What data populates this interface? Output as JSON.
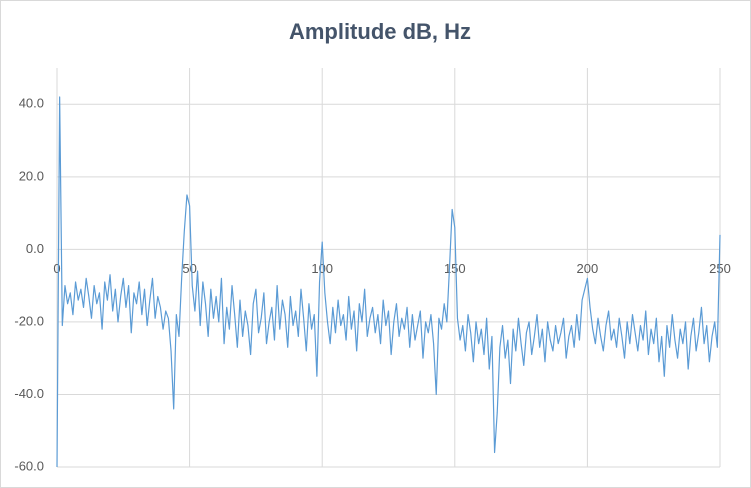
{
  "chart_data": {
    "type": "line",
    "title": "Amplitude dB, Hz",
    "x": [
      0,
      1,
      2,
      3,
      4,
      5,
      6,
      7,
      8,
      9,
      10,
      11,
      12,
      13,
      14,
      15,
      16,
      17,
      18,
      19,
      20,
      21,
      22,
      23,
      24,
      25,
      26,
      27,
      28,
      29,
      30,
      31,
      32,
      33,
      34,
      35,
      36,
      37,
      38,
      39,
      40,
      41,
      42,
      43,
      44,
      45,
      46,
      47,
      48,
      49,
      50,
      51,
      52,
      53,
      54,
      55,
      56,
      57,
      58,
      59,
      60,
      61,
      62,
      63,
      64,
      65,
      66,
      67,
      68,
      69,
      70,
      71,
      72,
      73,
      74,
      75,
      76,
      77,
      78,
      79,
      80,
      81,
      82,
      83,
      84,
      85,
      86,
      87,
      88,
      89,
      90,
      91,
      92,
      93,
      94,
      95,
      96,
      97,
      98,
      99,
      100,
      101,
      102,
      103,
      104,
      105,
      106,
      107,
      108,
      109,
      110,
      111,
      112,
      113,
      114,
      115,
      116,
      117,
      118,
      119,
      120,
      121,
      122,
      123,
      124,
      125,
      126,
      127,
      128,
      129,
      130,
      131,
      132,
      133,
      134,
      135,
      136,
      137,
      138,
      139,
      140,
      141,
      142,
      143,
      144,
      145,
      146,
      147,
      148,
      149,
      150,
      151,
      152,
      153,
      154,
      155,
      156,
      157,
      158,
      159,
      160,
      161,
      162,
      163,
      164,
      165,
      166,
      167,
      168,
      169,
      170,
      171,
      172,
      173,
      174,
      175,
      176,
      177,
      178,
      179,
      180,
      181,
      182,
      183,
      184,
      185,
      186,
      187,
      188,
      189,
      190,
      191,
      192,
      193,
      194,
      195,
      196,
      197,
      198,
      199,
      200,
      201,
      202,
      203,
      204,
      205,
      206,
      207,
      208,
      209,
      210,
      211,
      212,
      213,
      214,
      215,
      216,
      217,
      218,
      219,
      220,
      221,
      222,
      223,
      224,
      225,
      226,
      227,
      228,
      229,
      230,
      231,
      232,
      233,
      234,
      235,
      236,
      237,
      238,
      239,
      240,
      241,
      242,
      243,
      244,
      245,
      246,
      247,
      248,
      249,
      250
    ],
    "series": [
      {
        "name": "Amplitude",
        "color": "#5b9bd5",
        "values": [
          -60,
          42,
          -21,
          -10,
          -15,
          -12,
          -18,
          -9,
          -14,
          -11,
          -16,
          -8,
          -13,
          -19,
          -10,
          -15,
          -12,
          -22,
          -9,
          -14,
          -7,
          -17,
          -11,
          -20,
          -13,
          -8,
          -16,
          -10,
          -23,
          -12,
          -15,
          -9,
          -18,
          -11,
          -21,
          -14,
          -8,
          -19,
          -13,
          -16,
          -22,
          -17,
          -19,
          -28,
          -44,
          -18,
          -24,
          -8,
          5,
          15,
          12,
          -10,
          -17,
          -6,
          -21,
          -9,
          -15,
          -24,
          -11,
          -19,
          -13,
          -20,
          -8,
          -26,
          -16,
          -22,
          -10,
          -18,
          -27,
          -14,
          -24,
          -17,
          -21,
          -29,
          -15,
          -11,
          -23,
          -19,
          -12,
          -26,
          -20,
          -16,
          -25,
          -10,
          -22,
          -14,
          -18,
          -27,
          -13,
          -21,
          -17,
          -24,
          -11,
          -19,
          -28,
          -15,
          -22,
          -18,
          -35,
          -9,
          2,
          -12,
          -20,
          -26,
          -16,
          -23,
          -14,
          -21,
          -18,
          -25,
          -13,
          -22,
          -17,
          -28,
          -15,
          -20,
          -11,
          -24,
          -19,
          -16,
          -23,
          -18,
          -26,
          -14,
          -21,
          -17,
          -29,
          -20,
          -15,
          -24,
          -19,
          -22,
          -16,
          -27,
          -18,
          -25,
          -21,
          -17,
          -30,
          -20,
          -23,
          -18,
          -26,
          -40,
          -19,
          -22,
          -15,
          -20,
          -5,
          11,
          6,
          -19,
          -25,
          -21,
          -28,
          -18,
          -23,
          -31,
          -20,
          -26,
          -22,
          -29,
          -19,
          -33,
          -24,
          -56,
          -45,
          -27,
          -21,
          -30,
          -25,
          -37,
          -22,
          -28,
          -19,
          -26,
          -32,
          -23,
          -20,
          -29,
          -24,
          -18,
          -27,
          -22,
          -31,
          -20,
          -25,
          -28,
          -21,
          -26,
          -23,
          -19,
          -30,
          -24,
          -21,
          -27,
          -18,
          -25,
          -14,
          -11,
          -8,
          -16,
          -22,
          -26,
          -19,
          -24,
          -28,
          -21,
          -17,
          -25,
          -22,
          -27,
          -19,
          -24,
          -30,
          -20,
          -26,
          -18,
          -23,
          -28,
          -21,
          -25,
          -17,
          -29,
          -22,
          -26,
          -19,
          -31,
          -24,
          -35,
          -21,
          -27,
          -18,
          -25,
          -30,
          -22,
          -26,
          -20,
          -33,
          -24,
          -19,
          -28,
          -23,
          -16,
          -26,
          -21,
          -31,
          -24,
          -20,
          -27,
          4
        ]
      }
    ],
    "xlim": [
      0,
      250
    ],
    "xticks": [
      0,
      50,
      100,
      150,
      200,
      250
    ],
    "ylim": [
      -60,
      50
    ],
    "yticks": [
      {
        "value": -60,
        "label": "-60.0"
      },
      {
        "value": -40,
        "label": "-40.0"
      },
      {
        "value": -20,
        "label": "-20.0"
      },
      {
        "value": 0,
        "label": "0.0"
      },
      {
        "value": 20,
        "label": "20.0"
      },
      {
        "value": 40,
        "label": "40.0"
      }
    ],
    "grid": true
  }
}
